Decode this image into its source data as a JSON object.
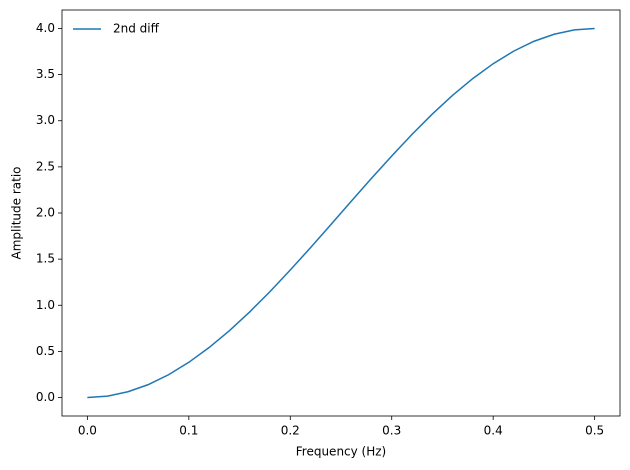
{
  "chart_data": {
    "type": "line",
    "xlabel": "Frequency (Hz)",
    "ylabel": "Amplitude ratio",
    "x": [
      0,
      0.02,
      0.04,
      0.06,
      0.08,
      0.1,
      0.12,
      0.14,
      0.16,
      0.18,
      0.2,
      0.22,
      0.24,
      0.26,
      0.28,
      0.3,
      0.32,
      0.34,
      0.36,
      0.38,
      0.4,
      0.42,
      0.44,
      0.46,
      0.48,
      0.5
    ],
    "series": [
      {
        "name": "2nd diff",
        "color": "#1f77b4",
        "values": [
          0,
          0.016,
          0.063,
          0.14,
          0.247,
          0.382,
          0.542,
          0.725,
          0.928,
          1.148,
          1.382,
          1.625,
          1.874,
          2.126,
          2.375,
          2.618,
          2.852,
          3.072,
          3.275,
          3.458,
          3.618,
          3.753,
          3.86,
          3.937,
          3.984,
          4
        ]
      }
    ],
    "xlim": [
      -0.025,
      0.525
    ],
    "ylim": [
      -0.2,
      4.2
    ],
    "xticks": [
      {
        "value": 0,
        "label": "0.0"
      },
      0.1,
      0.2,
      0.3,
      0.4,
      0.5
    ],
    "yticks": [
      {
        "value": 0,
        "label": "0.0"
      },
      0.5,
      {
        "value": 1,
        "label": "1.0"
      },
      1.5,
      {
        "value": 2,
        "label": "2.0"
      },
      2.5,
      {
        "value": 3,
        "label": "3.0"
      },
      3.5,
      {
        "value": 4,
        "label": "4.0"
      }
    ],
    "legend": "upper left"
  }
}
